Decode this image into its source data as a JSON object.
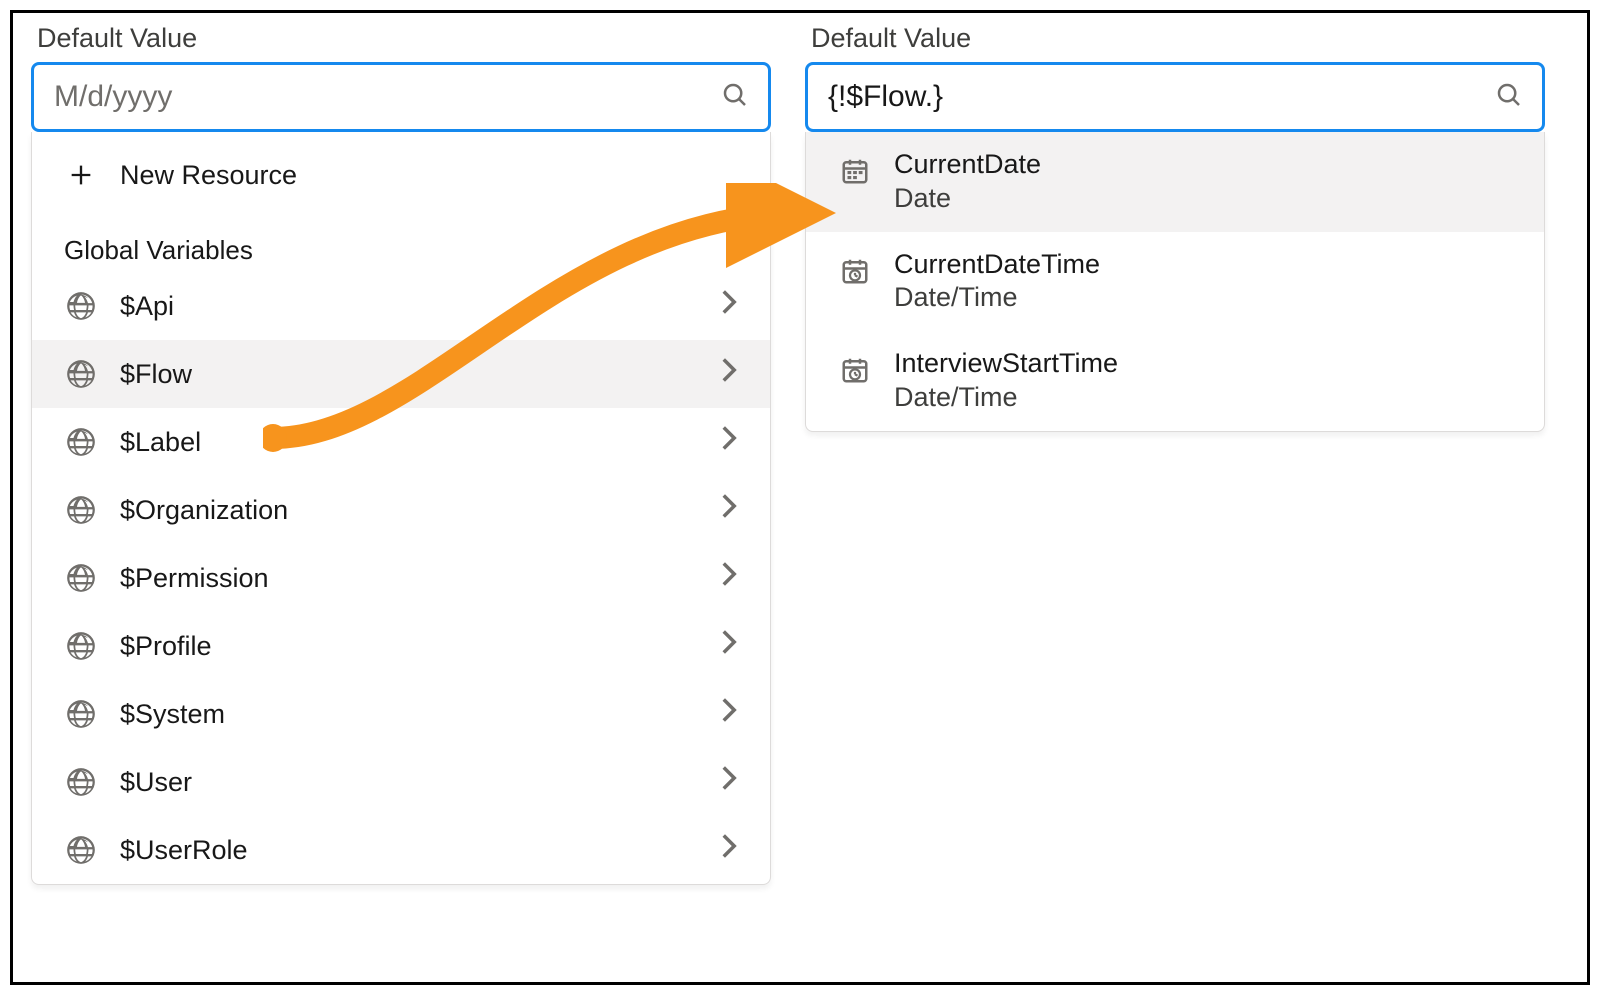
{
  "colors": {
    "focus_border": "#1589ee",
    "text": "#181818",
    "muted": "#706e6b",
    "hover_bg": "#f3f2f2",
    "arrow": "#f7941d",
    "frame_border": "#000000"
  },
  "left": {
    "label": "Default Value",
    "placeholder": "M/d/yyyy",
    "new_resource": "New Resource",
    "section_header": "Global Variables",
    "items": [
      {
        "label": "$Api",
        "selected": false
      },
      {
        "label": "$Flow",
        "selected": true
      },
      {
        "label": "$Label",
        "selected": false
      },
      {
        "label": "$Organization",
        "selected": false
      },
      {
        "label": "$Permission",
        "selected": false
      },
      {
        "label": "$Profile",
        "selected": false
      },
      {
        "label": "$System",
        "selected": false
      },
      {
        "label": "$User",
        "selected": false
      },
      {
        "label": "$UserRole",
        "selected": false
      }
    ]
  },
  "right": {
    "label": "Default Value",
    "value": "{!$Flow.}",
    "items": [
      {
        "title": "CurrentDate",
        "sub": "Date",
        "icon": "date",
        "selected": true
      },
      {
        "title": "CurrentDateTime",
        "sub": "Date/Time",
        "icon": "datetime",
        "selected": false
      },
      {
        "title": "InterviewStartTime",
        "sub": "Date/Time",
        "icon": "datetime",
        "selected": false
      }
    ]
  },
  "annotation": {
    "type": "arrow",
    "from": "left.items[$Flow]",
    "to": "right.dropdown",
    "color": "#f7941d",
    "stroke_width": 22
  }
}
